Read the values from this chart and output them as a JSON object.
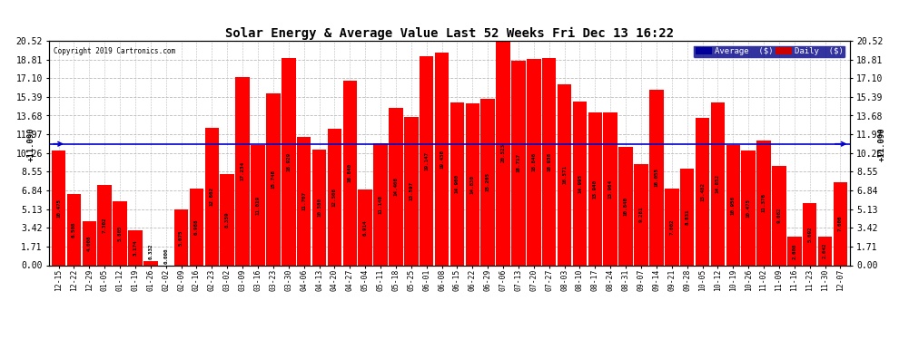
{
  "title": "Solar Energy & Average Value Last 52 Weeks Fri Dec 13 16:22",
  "copyright": "Copyright 2019 Cartronics.com",
  "average_line": 11.09,
  "bar_color": "#ff0000",
  "average_line_color": "#0000cc",
  "background_color": "#ffffff",
  "grid_color": "#bbbbbb",
  "yticks": [
    0.0,
    1.71,
    3.42,
    5.13,
    6.84,
    8.55,
    10.26,
    11.97,
    13.68,
    15.39,
    17.1,
    18.81,
    20.52
  ],
  "legend_avg_color": "#000099",
  "legend_daily_color": "#cc0000",
  "categories": [
    "12-15",
    "12-22",
    "12-29",
    "01-05",
    "01-12",
    "01-19",
    "01-26",
    "02-02",
    "02-09",
    "02-16",
    "02-23",
    "03-02",
    "03-09",
    "03-16",
    "03-23",
    "03-30",
    "04-06",
    "04-13",
    "04-20",
    "04-27",
    "05-04",
    "05-11",
    "05-18",
    "05-25",
    "06-01",
    "06-08",
    "06-15",
    "06-22",
    "06-29",
    "07-06",
    "07-13",
    "07-20",
    "07-27",
    "08-03",
    "08-10",
    "08-17",
    "08-24",
    "08-31",
    "09-07",
    "09-14",
    "09-21",
    "09-28",
    "10-05",
    "10-12",
    "10-19",
    "10-26",
    "11-02",
    "11-09",
    "11-16",
    "11-23",
    "11-30",
    "12-07"
  ],
  "values": [
    10.475,
    6.508,
    4.008,
    7.302,
    5.805,
    3.174,
    0.332,
    0.0,
    5.075,
    6.988,
    12.602,
    8.359,
    17.234,
    11.019,
    15.748,
    18.929,
    11.707,
    10.58,
    12.508,
    16.84,
    6.914,
    11.14,
    14.408,
    13.597,
    19.147,
    19.43,
    14.9,
    14.83,
    15.205,
    20.523,
    18.717,
    18.846,
    18.938,
    16.571,
    14.995,
    13.94,
    13.964,
    10.84,
    9.281,
    16.055,
    7.002,
    8.831,
    13.482,
    14.852,
    10.956,
    10.475,
    11.376,
    9.082,
    2.608,
    5.692,
    2.642,
    7.606
  ]
}
